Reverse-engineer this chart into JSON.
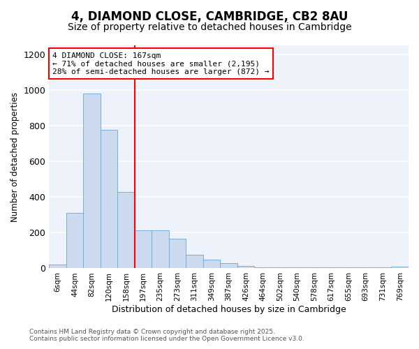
{
  "title1": "4, DIAMOND CLOSE, CAMBRIDGE, CB2 8AU",
  "title2": "Size of property relative to detached houses in Cambridge",
  "xlabel": "Distribution of detached houses by size in Cambridge",
  "ylabel": "Number of detached properties",
  "bin_labels": [
    "6sqm",
    "44sqm",
    "82sqm",
    "120sqm",
    "158sqm",
    "197sqm",
    "235sqm",
    "273sqm",
    "311sqm",
    "349sqm",
    "387sqm",
    "426sqm",
    "464sqm",
    "502sqm",
    "540sqm",
    "578sqm",
    "617sqm",
    "655sqm",
    "693sqm",
    "731sqm",
    "769sqm"
  ],
  "bin_values": [
    20,
    310,
    980,
    775,
    430,
    215,
    215,
    165,
    75,
    50,
    30,
    15,
    5,
    5,
    5,
    5,
    5,
    5,
    5,
    5,
    10
  ],
  "bar_color": "#ccdaf0",
  "bar_edge_color": "#7aaed6",
  "vline_color": "red",
  "annotation_text": "4 DIAMOND CLOSE: 167sqm\n← 71% of detached houses are smaller (2,195)\n28% of semi-detached houses are larger (872) →",
  "annotation_box_color": "white",
  "annotation_box_edge": "red",
  "ylim": [
    0,
    1250
  ],
  "yticks": [
    0,
    200,
    400,
    600,
    800,
    1000,
    1200
  ],
  "footer1": "Contains HM Land Registry data © Crown copyright and database right 2025.",
  "footer2": "Contains public sector information licensed under the Open Government Licence v3.0.",
  "bg_color": "#ffffff",
  "plot_bg_color": "#eef2fb",
  "grid_color": "#ffffff",
  "title_fontsize": 12,
  "subtitle_fontsize": 10
}
